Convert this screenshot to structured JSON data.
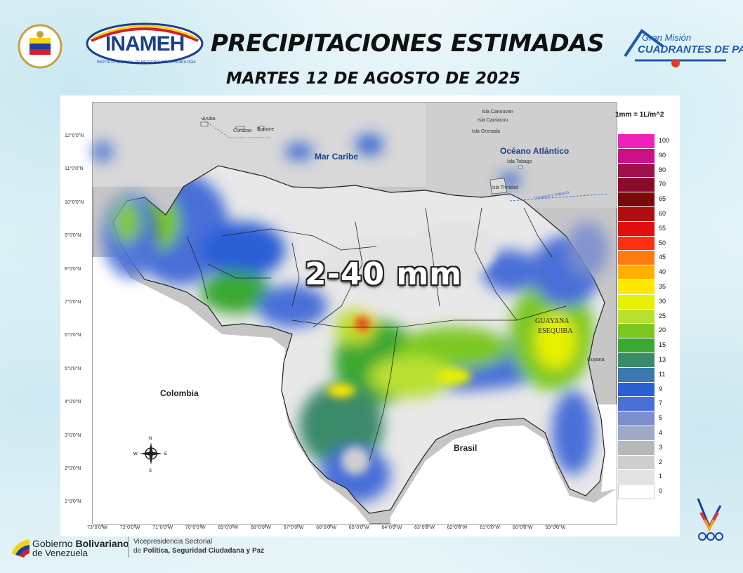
{
  "header": {
    "title": "PRECIPITACIONES ESTIMADAS",
    "subtitle": "MARTES 12 DE AGOSTO DE 2025",
    "inameh_logo_text": "INAMEH",
    "inameh_logo_subtext": "INSTITUTO NACIONAL DE METEOROLOGÍA E HIDROLOGÍA",
    "right_logo_line1": "Gran Misión",
    "right_logo_line2": "CUADRANTES DE PAZ"
  },
  "map": {
    "estimate_text": "2-40 mm",
    "unit_label": "1mm = 1L/m^2",
    "labels": {
      "mar_caribe": "Mar Caribe",
      "oceano_atlantico": "Océano Atlántico",
      "colombia": "Colombia",
      "brasil": "Brasil",
      "guayana_esequiba_1": "GUAYANA",
      "guayana_esequiba_2": "ESEQUIBA",
      "guyana": "Guyana",
      "aruba": "Aruba",
      "curazao": "Curazao",
      "bonaire": "Bonaire",
      "isla_canouvan": "Isla Canouvan",
      "isla_carriacou": "Isla Carriacou",
      "isla_grenada": "Isla Grenada",
      "isla_tobago": "Isla Tobago",
      "isla_trinidad": "Isla Trinidad",
      "tt_border": "TRINIDAD Y TOBAGO"
    },
    "latitudes": [
      "12°0'0\"N",
      "11°0'0\"N",
      "10°0'0\"N",
      "9°0'0\"N",
      "8°0'0\"N",
      "7°0'0\"N",
      "6°0'0\"N",
      "5°0'0\"N",
      "4°0'0\"N",
      "3°0'0\"N",
      "2°0'0\"N",
      "1°0'0\"N"
    ],
    "longitudes": [
      "73°0'0\"W",
      "72°0'0\"W",
      "71°0'0\"W",
      "70°0'0\"W",
      "69°0'0\"W",
      "68°0'0\"W",
      "67°0'0\"W",
      "66°0'0\"W",
      "65°0'0\"W",
      "64°0'0\"W",
      "63°0'0\"W",
      "62°0'0\"W",
      "61°0'0\"W",
      "60°0'0\"W",
      "59°0'0\"W"
    ],
    "compass": {
      "n": "N",
      "s": "S",
      "e": "E",
      "w": "W"
    }
  },
  "legend": [
    {
      "label": "100",
      "color": "#ee22bb"
    },
    {
      "label": "90",
      "color": "#cc1188"
    },
    {
      "label": "80",
      "color": "#a0104e"
    },
    {
      "label": "70",
      "color": "#8a0a2a"
    },
    {
      "label": "65",
      "color": "#7a0a0a"
    },
    {
      "label": "60",
      "color": "#b00e0e"
    },
    {
      "label": "55",
      "color": "#e01010"
    },
    {
      "label": "50",
      "color": "#ff3010"
    },
    {
      "label": "45",
      "color": "#ff7a10"
    },
    {
      "label": "40",
      "color": "#ffb000"
    },
    {
      "label": "35",
      "color": "#ffe800"
    },
    {
      "label": "30",
      "color": "#e6f000"
    },
    {
      "label": "25",
      "color": "#b8e030"
    },
    {
      "label": "20",
      "color": "#7cc820"
    },
    {
      "label": "15",
      "color": "#3aa832"
    },
    {
      "label": "13",
      "color": "#3a8a6a"
    },
    {
      "label": "11",
      "color": "#3a7ab0"
    },
    {
      "label": "9",
      "color": "#2a5fd6"
    },
    {
      "label": "7",
      "color": "#4a70d8"
    },
    {
      "label": "5",
      "color": "#7c8ed0"
    },
    {
      "label": "4",
      "color": "#a0a8c8"
    },
    {
      "label": "3",
      "color": "#b8b8b8"
    },
    {
      "label": "2",
      "color": "#cfcfcf"
    },
    {
      "label": "1",
      "color": "#e3e3e3"
    },
    {
      "label": "0",
      "color": "#ffffff"
    }
  ],
  "footer": {
    "gov_line1_a": "Gobierno ",
    "gov_line1_b": "Bolivariano",
    "gov_line2": "de Venezuela",
    "vice_line1": "Vicepresidencia Sectorial",
    "vice_line2_a": "de ",
    "vice_line2_b": "Política, Seguridad Ciudadana y Paz"
  }
}
